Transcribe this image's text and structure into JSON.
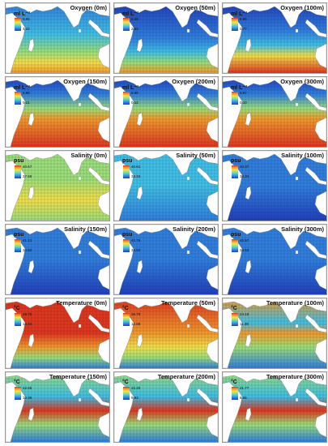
{
  "panels": [
    {
      "title": "Oxygen (0m)",
      "unit": "ml L⁻¹",
      "max": "5.96",
      "min": "4.22",
      "palette": "oxy0"
    },
    {
      "title": "Oxygen (50m)",
      "unit": "ml L⁻¹",
      "max": "6.06",
      "min": "2.63",
      "palette": "oxy50"
    },
    {
      "title": "Oxygen (100m)",
      "unit": "ml L⁻¹",
      "max": "5.96",
      "min": "0.77",
      "palette": "oxy100"
    },
    {
      "title": "Oxygen (150m)",
      "unit": "ml L⁻¹",
      "max": "5.88",
      "min": "0.21",
      "palette": "oxydeep"
    },
    {
      "title": "Oxygen (200m)",
      "unit": "ml L⁻¹",
      "max": "5.88",
      "min": "0.12",
      "palette": "oxydeep"
    },
    {
      "title": "Oxygen (300m)",
      "unit": "ml L⁻¹",
      "max": "5.87",
      "min": "0.10",
      "palette": "oxydeep"
    },
    {
      "title": "Salinity (0m)",
      "unit": "psu",
      "max": "40.67",
      "min": "27.59",
      "palette": "sal0"
    },
    {
      "title": "Salinity (50m)",
      "unit": "psu",
      "max": "40.61",
      "min": "33.34",
      "palette": "sal50"
    },
    {
      "title": "Salinity (100m)",
      "unit": "psu",
      "max": "40.37",
      "min": "34.34",
      "palette": "saldeep"
    },
    {
      "title": "Salinity (150m)",
      "unit": "psu",
      "max": "41.13",
      "min": "34.50",
      "palette": "saldeep"
    },
    {
      "title": "Salinity (200m)",
      "unit": "psu",
      "max": "40.76",
      "min": "34.52",
      "palette": "saldeep"
    },
    {
      "title": "Salinity (300m)",
      "unit": "psu",
      "max": "40.57",
      "min": "34.53",
      "palette": "saldeep"
    },
    {
      "title": "Temperature (0m)",
      "unit": "°C",
      "max": "29.75",
      "min": "13.44",
      "palette": "temp0"
    },
    {
      "title": "Temperature (50m)",
      "unit": "°C",
      "max": "28.79",
      "min": "12.89",
      "palette": "temp50"
    },
    {
      "title": "Temperature (100m)",
      "unit": "°C",
      "max": "24.19",
      "min": "11.38",
      "palette": "temp100"
    },
    {
      "title": "Temperature (150m)",
      "unit": "°C",
      "max": "22.65",
      "min": "10.39",
      "palette": "tempdeep"
    },
    {
      "title": "Temperature (200m)",
      "unit": "°C",
      "max": "22.20",
      "min": "9.93",
      "palette": "tempdeep"
    },
    {
      "title": "Temperature (300m)",
      "unit": "°C",
      "max": "21.77",
      "min": "8.65",
      "palette": "tempdeep"
    }
  ],
  "colors": {
    "land": "#ffffff",
    "gridline": "#2b2b2b",
    "ramp": [
      "#1f3fbf",
      "#2f7fe0",
      "#3fc0e8",
      "#9be07a",
      "#f4e04a",
      "#f39a2c",
      "#e0361e"
    ]
  }
}
